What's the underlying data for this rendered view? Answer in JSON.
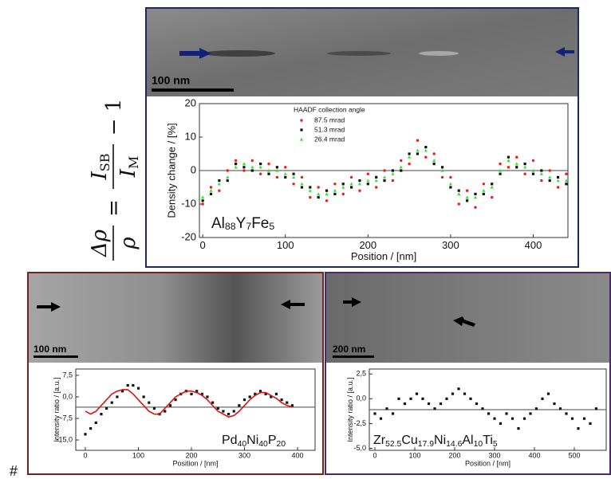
{
  "equation": {
    "numerator": "Δρ",
    "denominator": "ρ",
    "equals": "=",
    "rhs_numerator": [
      "I",
      "SB"
    ],
    "rhs_denominator": [
      "I",
      "M"
    ],
    "minus_one": "− 1"
  },
  "footnote": "#",
  "chart_data": [
    {
      "type": "scatter",
      "scale_bar": "100 nm",
      "annotation": [
        "Al",
        "88",
        "Y",
        "7",
        "Fe",
        "5"
      ],
      "xlabel": "Position / [nm]",
      "ylabel": "Density change / [%]",
      "legend_title": "HAADF collection angle",
      "xlim": [
        -4,
        442
      ],
      "ylim": [
        -20,
        20
      ],
      "xticks": [
        0,
        100,
        200,
        300,
        400
      ],
      "yticks": [
        -20,
        -10,
        0,
        10,
        20
      ],
      "hline": 0,
      "legend": "upper center",
      "x": [
        0,
        10,
        20,
        30,
        40,
        50,
        60,
        70,
        80,
        90,
        100,
        110,
        120,
        130,
        140,
        150,
        160,
        170,
        180,
        190,
        200,
        210,
        220,
        230,
        240,
        250,
        260,
        270,
        280,
        290,
        300,
        310,
        320,
        330,
        340,
        350,
        360,
        370,
        380,
        390,
        400,
        410,
        420,
        430,
        440
      ],
      "series": [
        {
          "name": "87.5 mrad",
          "color": "#e8201c",
          "marker": "circle",
          "values": [
            -10,
            -5,
            -6,
            0,
            3,
            0,
            3,
            -1,
            2,
            -2,
            1,
            -4,
            -2,
            -8,
            -5,
            -9,
            -4,
            -7,
            -2,
            -6,
            -1,
            -5,
            0,
            -3,
            3,
            2,
            9,
            4,
            5,
            -2,
            -2,
            -10,
            -6,
            -11,
            -4,
            -8,
            2,
            1,
            4,
            -1,
            3,
            -3,
            0,
            -5,
            -1
          ]
        },
        {
          "name": "51.3 mrad",
          "color": "#111111",
          "marker": "square",
          "values": [
            -9,
            -7,
            -3,
            -3,
            2,
            1,
            0,
            2,
            -1,
            1,
            -2,
            -1,
            -5,
            -5,
            -8,
            -6,
            -7,
            -4,
            -5,
            -3,
            -4,
            -2,
            -3,
            0,
            0,
            5,
            5,
            7,
            2,
            1,
            -5,
            -6,
            -9,
            -7,
            -7,
            -4,
            -1,
            4,
            1,
            2,
            -1,
            0,
            -3,
            -2,
            -4
          ]
        },
        {
          "name": "26.4 mrad",
          "color": "#22e81c",
          "marker": "triangle",
          "values": [
            -8,
            -6,
            -4,
            -2,
            1,
            2,
            1,
            1,
            0,
            0,
            -1,
            -2,
            -4,
            -6,
            -7,
            -7,
            -6,
            -5,
            -4,
            -4,
            -3,
            -3,
            -2,
            -1,
            1,
            4,
            6,
            6,
            3,
            0,
            -4,
            -7,
            -8,
            -8,
            -6,
            -5,
            0,
            3,
            2,
            1,
            0,
            -1,
            -2,
            -3,
            -3
          ]
        }
      ]
    },
    {
      "type": "scatter",
      "scale_bar": "100 nm",
      "annotation": [
        "Pd",
        "40",
        "Ni",
        "40",
        "P",
        "20"
      ],
      "xlabel": "Position / [nm]",
      "ylabel": "Intensity ratio / [a.u.]",
      "xlim": [
        -18,
        433
      ],
      "ylim": [
        -18.6,
        9.7
      ],
      "xticks": [
        0,
        100,
        200,
        300,
        400
      ],
      "yticks": [
        {
          "value": 7.5,
          "label": "7,5"
        },
        {
          "value": 0,
          "label": "0,0"
        },
        {
          "value": -7.5,
          "label": "-7,5"
        },
        {
          "value": -15,
          "label": "-15,0"
        }
      ],
      "hline": -3.6,
      "x": [
        0,
        10,
        20,
        30,
        40,
        50,
        60,
        70,
        80,
        90,
        100,
        110,
        120,
        130,
        140,
        150,
        160,
        170,
        180,
        190,
        200,
        210,
        220,
        230,
        240,
        250,
        260,
        270,
        280,
        290,
        300,
        310,
        320,
        330,
        340,
        350,
        360,
        370,
        380,
        390
      ],
      "series": [
        {
          "color": "#111111",
          "marker": "square",
          "values": [
            -13,
            -11,
            -9,
            -6,
            -4,
            -2,
            0,
            2,
            4,
            4,
            3,
            0,
            -2,
            -4,
            -6,
            -5,
            -3,
            -1,
            1,
            2,
            1,
            2,
            1,
            0,
            -2,
            -4,
            -5,
            -6,
            -5,
            -3,
            -1,
            0,
            1,
            2,
            1,
            0,
            1,
            -1,
            -2,
            -3
          ]
        }
      ],
      "fit": {
        "color": "#e01010",
        "values": [
          -5,
          -6,
          -5,
          -3,
          -1,
          1,
          2,
          2.5,
          2.5,
          1,
          -1,
          -3,
          -5,
          -6,
          -6,
          -4,
          -2,
          0,
          1,
          2,
          2,
          1.5,
          0.5,
          -1,
          -3,
          -5,
          -6,
          -7,
          -6.5,
          -5,
          -3,
          -1,
          0.5,
          1.5,
          1.5,
          0.5,
          -0.5,
          -2,
          -3,
          -3.5
        ]
      }
    },
    {
      "type": "scatter",
      "scale_bar": "200 nm",
      "annotation": [
        "Zr",
        "52.5",
        "Cu",
        "17.9",
        "Ni",
        "14.6",
        "Al",
        "10",
        "Ti",
        "5"
      ],
      "xlabel": "Position / [nm]",
      "ylabel": "Intensity ratio / [a.u.]",
      "xlim": [
        -14,
        580
      ],
      "ylim": [
        -5.2,
        3.0
      ],
      "xticks": [
        0,
        100,
        200,
        300,
        400,
        500
      ],
      "yticks": [
        {
          "value": 2.5,
          "label": "2,5"
        },
        {
          "value": 0,
          "label": "0,0"
        },
        {
          "value": -2.5,
          "label": "-2,5"
        },
        {
          "value": -5,
          "label": "-5,0"
        }
      ],
      "hline": -1.1,
      "x": [
        0,
        15,
        30,
        45,
        60,
        75,
        90,
        105,
        120,
        135,
        150,
        165,
        180,
        195,
        210,
        225,
        240,
        255,
        270,
        285,
        300,
        315,
        330,
        345,
        360,
        375,
        390,
        405,
        420,
        435,
        450,
        465,
        480,
        495,
        510,
        525,
        540,
        555
      ],
      "series": [
        {
          "color": "#111111",
          "marker": "square",
          "values": [
            -1.5,
            -2,
            -1,
            -1.5,
            0,
            -0.5,
            0,
            0.5,
            0,
            -0.5,
            -1,
            -0.5,
            0,
            0.5,
            1,
            0.5,
            0,
            -0.5,
            -1,
            -1.5,
            -2,
            -2.5,
            -1.5,
            -2,
            -3,
            -2,
            -1.5,
            -1,
            0,
            0.5,
            -0.5,
            -1,
            -1.5,
            -2,
            -3,
            -2,
            -2.5,
            -1
          ]
        }
      ]
    }
  ]
}
